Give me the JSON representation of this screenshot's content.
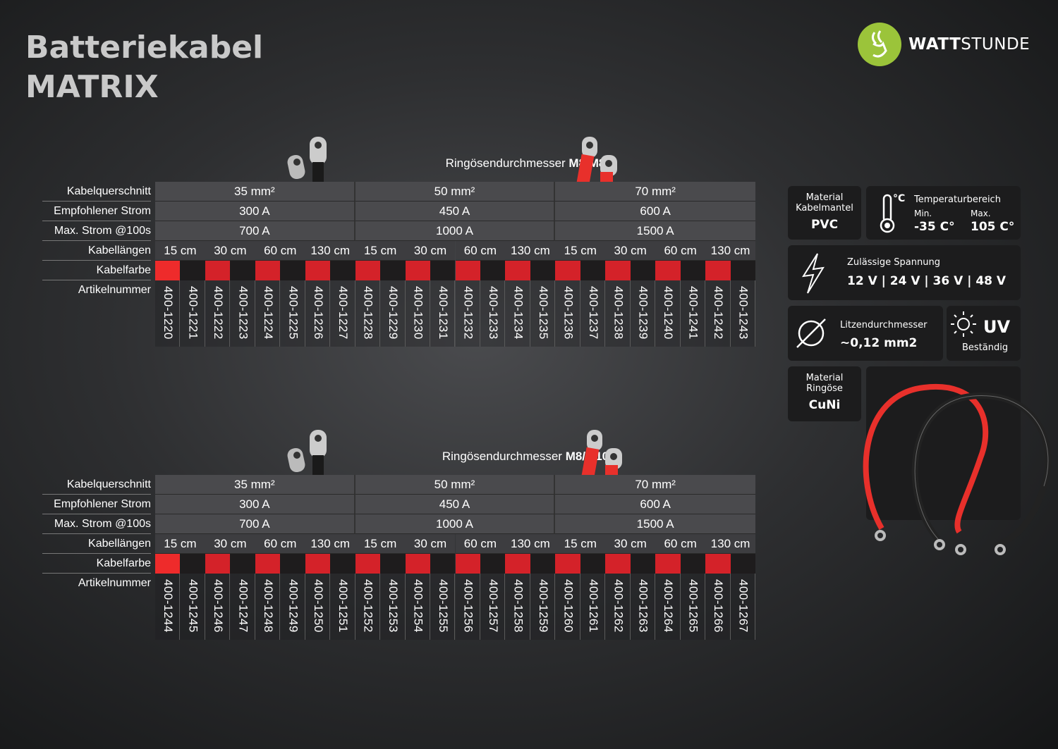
{
  "title": {
    "line1": "Batteriekabel",
    "line2": "MATRIX"
  },
  "logo": {
    "bold": "WATT",
    "light": "STUNDE",
    "color": "#9bc43a"
  },
  "row_labels": [
    "Kabelquerschnitt",
    "Empfohlener Strom",
    "Max. Strom @100s",
    "Kabellängen",
    "Kabelfarbe",
    "Artikelnummer"
  ],
  "colors": {
    "red": "#d42229",
    "red_first": "#ee2b2b",
    "black": "#1e1c1d"
  },
  "tables": [
    {
      "caption_prefix": "Ringösendurchmesser ",
      "caption_bold": "M8/M8",
      "groups": [
        {
          "cross": "35 mm²",
          "current": "300 A",
          "max": "700 A"
        },
        {
          "cross": "50 mm²",
          "current": "450 A",
          "max": "1000 A"
        },
        {
          "cross": "70 mm²",
          "current": "600 A",
          "max": "1500 A"
        }
      ],
      "lengths": [
        "15 cm",
        "30 cm",
        "60 cm",
        "130 cm"
      ],
      "articles": [
        "400-1220",
        "400-1221",
        "400-1222",
        "400-1223",
        "400-1224",
        "400-1225",
        "400-1226",
        "400-1227",
        "400-1228",
        "400-1229",
        "400-1230",
        "400-1231",
        "400-1232",
        "400-1233",
        "400-1234",
        "400-1235",
        "400-1236",
        "400-1237",
        "400-1238",
        "400-1239",
        "400-1240",
        "400-1241",
        "400-1242",
        "400-1243"
      ]
    },
    {
      "caption_prefix": "Ringösendurchmesser ",
      "caption_bold": "M8/M10",
      "groups": [
        {
          "cross": "35 mm²",
          "current": "300 A",
          "max": "700 A"
        },
        {
          "cross": "50 mm²",
          "current": "450 A",
          "max": "1000 A"
        },
        {
          "cross": "70 mm²",
          "current": "600 A",
          "max": "1500 A"
        }
      ],
      "lengths": [
        "15 cm",
        "30 cm",
        "60 cm",
        "130 cm"
      ],
      "articles": [
        "400-1244",
        "400-1245",
        "400-1246",
        "400-1247",
        "400-1248",
        "400-1249",
        "400-1250",
        "400-1251",
        "400-1252",
        "400-1253",
        "400-1254",
        "400-1255",
        "400-1256",
        "400-1257",
        "400-1258",
        "400-1259",
        "400-1260",
        "400-1261",
        "400-1262",
        "400-1263",
        "400-1264",
        "400-1265",
        "400-1266",
        "400-1267"
      ]
    }
  ],
  "specs": {
    "mantel": {
      "label1": "Material",
      "label2": "Kabelmantel",
      "value": "PVC"
    },
    "temp": {
      "unit": "°C",
      "title": "Temperaturbereich",
      "min_label": "Min.",
      "min": "-35 C°",
      "max_label": "Max.",
      "max": "105 C°"
    },
    "voltage": {
      "title": "Zulässige Spannung",
      "value": "12 V | 24 V | 36 V | 48 V"
    },
    "strand": {
      "title": "Litzendurchmesser",
      "value": "~0,12 mm2"
    },
    "uv": {
      "title": "UV",
      "sub": "Beständig"
    },
    "lug": {
      "label1": "Material",
      "label2": "Ringöse",
      "value": "CuNi"
    }
  }
}
